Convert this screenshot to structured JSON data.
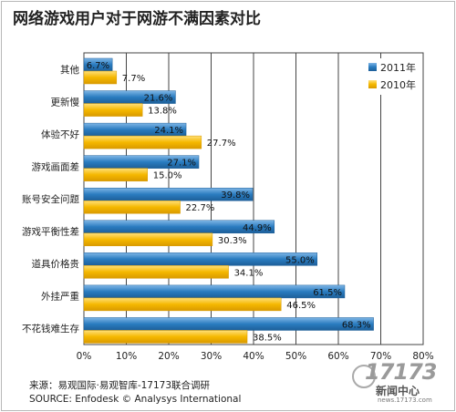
{
  "title": "网络游戏用户对于网游不满因素对比",
  "chart_data": {
    "type": "bar",
    "orientation": "horizontal",
    "categories": [
      "其他",
      "更新慢",
      "体验不好",
      "游戏画面差",
      "账号安全问题",
      "游戏平衡性差",
      "道具价格贵",
      "外挂严重",
      "不花钱难生存"
    ],
    "series": [
      {
        "name": "2011年",
        "values": [
          6.7,
          21.6,
          24.1,
          27.1,
          39.8,
          44.9,
          55.0,
          61.5,
          68.3
        ],
        "labels": [
          "6.7%",
          "21.6%",
          "24.1%",
          "27.1%",
          "39.8%",
          "44.9%",
          "55.0%",
          "61.5%",
          "68.3%"
        ]
      },
      {
        "name": "2010年",
        "values": [
          7.7,
          13.8,
          27.7,
          15.0,
          22.7,
          30.3,
          34.1,
          46.5,
          38.5
        ],
        "labels": [
          "7.7%",
          "13.8%",
          "27.7%",
          "15.0%",
          "22.7%",
          "30.3%",
          "34.1%",
          "46.5%",
          "38.5%"
        ]
      }
    ],
    "xlim": [
      0,
      80
    ],
    "xticks": [
      "0%",
      "10%",
      "20%",
      "30%",
      "40%",
      "50%",
      "60%",
      "70%",
      "80%"
    ],
    "grid": true,
    "legend": "top-right",
    "colors": {
      "2011": "#2a7cc0",
      "2010": "#f5b800"
    }
  },
  "source": {
    "line1": "来源：易观国际·易观智库-17173联合调研",
    "line2": "SOURCE: Enfodesk © Analysys International"
  },
  "watermark": {
    "number": "17173",
    "text": "新闻中心",
    "url": "news.17173.com"
  }
}
